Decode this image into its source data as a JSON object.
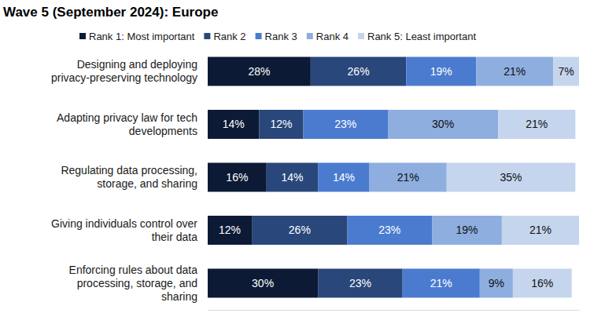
{
  "chart_data": {
    "type": "bar",
    "title": "Wave 5 (September 2024): Europe",
    "orientation": "horizontal",
    "stacked": true,
    "data_labels": true,
    "tick_labels": false,
    "legend": "top",
    "categories": [
      "Designing and deploying\nprivacy-preserving technology",
      "Adapting privacy law for tech\ndevelopments",
      "Regulating data processing,\nstorage, and sharing",
      "Giving individuals control over\ntheir data",
      "Enforcing rules about data\nprocessing, storage, and\nsharing"
    ],
    "xlim": [
      0,
      101
    ],
    "series": [
      {
        "name": "Rank 1: Most important",
        "color": "#0c1a35",
        "values": [
          28,
          14,
          16,
          12,
          30
        ],
        "value_labels": [
          "28%",
          "14%",
          "16%",
          "12%",
          "30%"
        ]
      },
      {
        "name": "Rank 2",
        "color": "#29477a",
        "values": [
          26,
          12,
          14,
          26,
          23
        ],
        "value_labels": [
          "26%",
          "12%",
          "14%",
          "26%",
          "23%"
        ]
      },
      {
        "name": "Rank 3",
        "color": "#4a7bcf",
        "values": [
          19,
          23,
          14,
          23,
          21
        ],
        "value_labels": [
          "19%",
          "23%",
          "14%",
          "23%",
          "21%"
        ]
      },
      {
        "name": "Rank 4",
        "color": "#8eaee0",
        "values": [
          21,
          30,
          21,
          19,
          9
        ],
        "value_labels": [
          "21%",
          "30%",
          "21%",
          "19%",
          "9%"
        ]
      },
      {
        "name": "Rank 5: Least important",
        "color": "#c5d5ee",
        "values": [
          7,
          21,
          35,
          21,
          16
        ],
        "value_labels": [
          "7%",
          "21%",
          "35%",
          "21%",
          "16%"
        ]
      }
    ]
  }
}
